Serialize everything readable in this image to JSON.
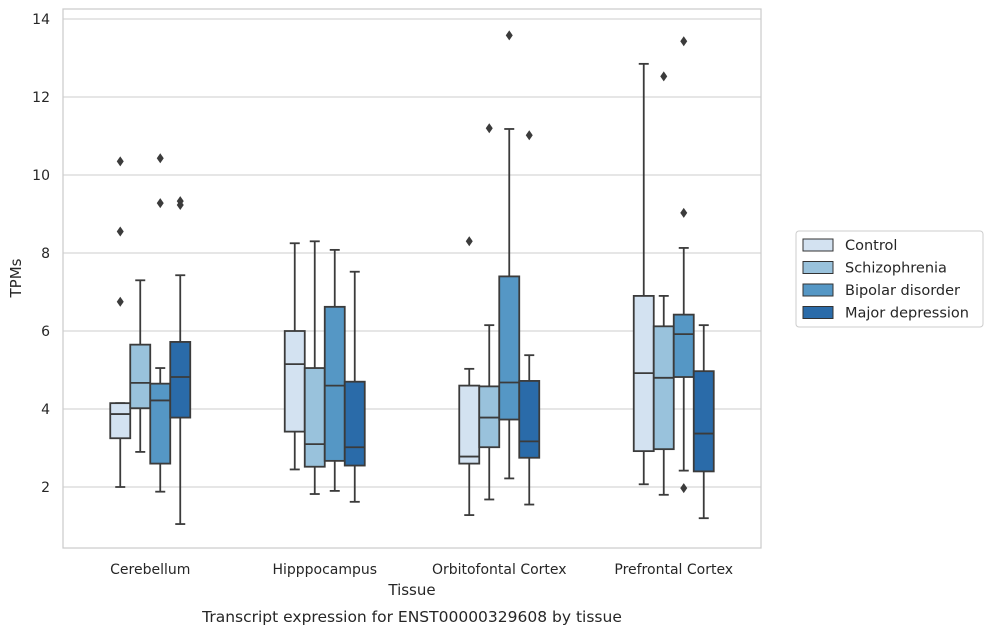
{
  "chart_data": {
    "type": "box",
    "caption": "Transcript expression for ENST00000329608 by tissue",
    "xlabel": "Tissue",
    "ylabel": "TPMs",
    "ylim": [
      0.4,
      14.2
    ],
    "yticks": [
      2,
      4,
      6,
      8,
      10,
      12,
      14
    ],
    "grid": "horizontal",
    "legend_placement": "right",
    "categories": [
      "Cerebellum",
      "Hipppocampus",
      "Orbitofontal Cortex",
      "Prefrontal Cortex"
    ],
    "series": [
      {
        "name": "Control",
        "color": "#d3e2f1",
        "boxes": [
          {
            "whislo": 2.0,
            "q1": 3.25,
            "med": 3.87,
            "q3": 4.15,
            "whishi": 4.15,
            "fliers": [
              6.75,
              8.55,
              10.35
            ]
          },
          {
            "whislo": 2.45,
            "q1": 3.42,
            "med": 5.15,
            "q3": 6.0,
            "whishi": 8.25,
            "fliers": []
          },
          {
            "whislo": 1.28,
            "q1": 2.6,
            "med": 2.78,
            "q3": 4.6,
            "whishi": 5.03,
            "fliers": [
              8.3
            ]
          },
          {
            "whislo": 2.07,
            "q1": 2.92,
            "med": 4.92,
            "q3": 6.9,
            "whishi": 12.85,
            "fliers": []
          }
        ]
      },
      {
        "name": "Schizophrenia",
        "color": "#99c2dc",
        "boxes": [
          {
            "whislo": 2.9,
            "q1": 4.02,
            "med": 4.67,
            "q3": 5.65,
            "whishi": 7.3,
            "fliers": []
          },
          {
            "whislo": 1.82,
            "q1": 2.52,
            "med": 3.1,
            "q3": 5.05,
            "whishi": 8.3,
            "fliers": []
          },
          {
            "whislo": 1.68,
            "q1": 3.02,
            "med": 3.78,
            "q3": 4.58,
            "whishi": 6.15,
            "fliers": [
              11.2
            ]
          },
          {
            "whislo": 1.8,
            "q1": 2.97,
            "med": 4.8,
            "q3": 6.12,
            "whishi": 6.9,
            "fliers": [
              12.53
            ]
          }
        ]
      },
      {
        "name": "Bipolar disorder",
        "color": "#5597c5",
        "boxes": [
          {
            "whislo": 1.88,
            "q1": 2.6,
            "med": 4.22,
            "q3": 4.65,
            "whishi": 5.05,
            "fliers": [
              9.28,
              10.43
            ]
          },
          {
            "whislo": 1.9,
            "q1": 2.67,
            "med": 4.6,
            "q3": 6.62,
            "whishi": 8.08,
            "fliers": []
          },
          {
            "whislo": 2.22,
            "q1": 3.73,
            "med": 4.68,
            "q3": 7.4,
            "whishi": 11.18,
            "fliers": [
              13.58
            ]
          },
          {
            "whislo": 2.42,
            "q1": 4.82,
            "med": 5.92,
            "q3": 6.42,
            "whishi": 8.13,
            "fliers": [
              1.97,
              9.03,
              13.43
            ]
          }
        ]
      },
      {
        "name": "Major depression",
        "color": "#2a6ba9",
        "boxes": [
          {
            "whislo": 1.05,
            "q1": 3.78,
            "med": 4.82,
            "q3": 5.72,
            "whishi": 7.43,
            "fliers": [
              9.23,
              9.33
            ]
          },
          {
            "whislo": 1.62,
            "q1": 2.55,
            "med": 3.02,
            "q3": 4.7,
            "whishi": 7.52,
            "fliers": []
          },
          {
            "whislo": 1.55,
            "q1": 2.75,
            "med": 3.17,
            "q3": 4.72,
            "whishi": 5.38,
            "fliers": [
              11.02
            ]
          },
          {
            "whislo": 1.2,
            "q1": 2.4,
            "med": 3.37,
            "q3": 4.97,
            "whishi": 6.15,
            "fliers": []
          }
        ]
      }
    ]
  }
}
